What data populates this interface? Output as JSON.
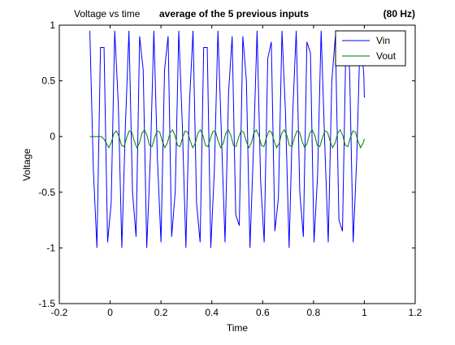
{
  "chart_data": {
    "type": "line",
    "title_left": "Voltage vs time",
    "title_middle": "average of the 5 previous inputs",
    "title_right": "(80 Hz)",
    "xlabel": "Time",
    "ylabel": "Voltage",
    "xlim": [
      -0.2,
      1.2
    ],
    "ylim": [
      -1.5,
      1
    ],
    "xticks": [
      -0.2,
      0,
      0.2,
      0.4,
      0.6,
      0.8,
      1,
      1.2
    ],
    "xtick_labels": [
      "-0.2",
      "0",
      "0.2",
      "0.4",
      "0.6",
      "0.8",
      "1",
      "1.2"
    ],
    "yticks": [
      -1.5,
      -1,
      -0.5,
      0,
      0.5,
      1
    ],
    "ytick_labels": [
      "-1.5",
      "-1",
      "-0.5",
      "0",
      "0.5",
      "1"
    ],
    "grid": false,
    "legend_position": "top-right",
    "series": [
      {
        "name": "Vin",
        "color": "#0000ff",
        "x": [
          -0.08,
          -0.066,
          -0.052,
          -0.038,
          -0.024,
          -0.01,
          0.004,
          0.018,
          0.032,
          0.046,
          0.06,
          0.074,
          0.088,
          0.102,
          0.116,
          0.13,
          0.144,
          0.158,
          0.172,
          0.186,
          0.2,
          0.214,
          0.228,
          0.242,
          0.256,
          0.27,
          0.284,
          0.298,
          0.312,
          0.326,
          0.34,
          0.354,
          0.368,
          0.382,
          0.396,
          0.41,
          0.424,
          0.438,
          0.452,
          0.466,
          0.48,
          0.494,
          0.508,
          0.522,
          0.536,
          0.55,
          0.564,
          0.578,
          0.592,
          0.606,
          0.62,
          0.634,
          0.648,
          0.662,
          0.676,
          0.69,
          0.704,
          0.718,
          0.732,
          0.746,
          0.76,
          0.774,
          0.788,
          0.802,
          0.816,
          0.83,
          0.844,
          0.858,
          0.872,
          0.886,
          0.9,
          0.914,
          0.928,
          0.942,
          0.956,
          0.97,
          0.984,
          0.998,
          1.0
        ],
        "y": [
          0.95,
          -0.3,
          -1.0,
          0.8,
          0.8,
          -0.95,
          -0.6,
          0.95,
          0.3,
          -1.0,
          0.1,
          0.95,
          -0.5,
          -0.9,
          0.9,
          0.6,
          -1.0,
          -0.2,
          0.95,
          -0.2,
          -0.95,
          0.6,
          0.9,
          -0.9,
          -0.5,
          0.95,
          0.1,
          -1.0,
          0.3,
          0.95,
          -0.6,
          -0.95,
          0.8,
          0.8,
          -1.0,
          -0.3,
          0.95,
          0.0,
          -0.95,
          0.4,
          0.9,
          -0.7,
          -0.8,
          0.9,
          0.5,
          -1.0,
          -0.1,
          0.95,
          -0.4,
          -0.95,
          0.7,
          0.85,
          -0.85,
          -0.55,
          0.95,
          0.2,
          -1.0,
          0.2,
          0.95,
          -0.5,
          -0.9,
          0.85,
          0.75,
          -0.95,
          -0.35,
          0.95,
          -0.05,
          -0.95,
          0.5,
          0.9,
          -0.75,
          -0.85,
          0.9,
          0.6,
          -0.95,
          -0.2,
          0.95,
          0.55,
          0.35
        ]
      },
      {
        "name": "Vout",
        "color": "#007f00",
        "x": [
          -0.08,
          -0.065,
          -0.05,
          -0.035,
          -0.025,
          -0.015,
          -0.005,
          0.005,
          0.015,
          0.025,
          0.035,
          0.045,
          0.055,
          0.065,
          0.075,
          0.085,
          0.095,
          0.105,
          0.115,
          0.125,
          0.135,
          0.145,
          0.155,
          0.165,
          0.175,
          0.185,
          0.195,
          0.205,
          0.215,
          0.225,
          0.235,
          0.245,
          0.255,
          0.265,
          0.275,
          0.285,
          0.295,
          0.305,
          0.315,
          0.325,
          0.335,
          0.345,
          0.355,
          0.365,
          0.375,
          0.385,
          0.395,
          0.405,
          0.415,
          0.425,
          0.435,
          0.445,
          0.455,
          0.465,
          0.475,
          0.485,
          0.495,
          0.505,
          0.515,
          0.525,
          0.535,
          0.545,
          0.555,
          0.565,
          0.575,
          0.585,
          0.595,
          0.605,
          0.615,
          0.625,
          0.635,
          0.645,
          0.655,
          0.665,
          0.675,
          0.685,
          0.695,
          0.705,
          0.715,
          0.725,
          0.735,
          0.745,
          0.755,
          0.765,
          0.775,
          0.785,
          0.795,
          0.805,
          0.815,
          0.825,
          0.835,
          0.845,
          0.855,
          0.865,
          0.875,
          0.885,
          0.895,
          0.905,
          0.915,
          0.925,
          0.935,
          0.945,
          0.955,
          0.965,
          0.975,
          0.985,
          0.995,
          1.0
        ],
        "y": [
          0.0,
          0.0,
          0.0,
          0.0,
          -0.02,
          -0.06,
          -0.1,
          -0.05,
          0.03,
          0.05,
          0.0,
          -0.08,
          -0.09,
          -0.01,
          0.05,
          0.04,
          -0.04,
          -0.1,
          -0.06,
          0.03,
          0.06,
          0.01,
          -0.08,
          -0.09,
          -0.01,
          0.05,
          0.04,
          -0.04,
          -0.1,
          -0.06,
          0.03,
          0.06,
          0.01,
          -0.08,
          -0.09,
          -0.01,
          0.05,
          0.04,
          -0.04,
          -0.1,
          -0.06,
          0.03,
          0.06,
          0.01,
          -0.08,
          -0.09,
          -0.01,
          0.05,
          0.04,
          -0.04,
          -0.1,
          -0.06,
          0.03,
          0.06,
          0.01,
          -0.08,
          -0.09,
          -0.01,
          0.05,
          0.04,
          -0.04,
          -0.1,
          -0.06,
          0.03,
          0.06,
          0.01,
          -0.08,
          -0.09,
          -0.01,
          0.05,
          0.04,
          -0.04,
          -0.1,
          -0.06,
          0.03,
          0.06,
          0.01,
          -0.08,
          -0.09,
          -0.01,
          0.05,
          0.04,
          -0.04,
          -0.1,
          -0.06,
          0.03,
          0.06,
          0.01,
          -0.08,
          -0.09,
          -0.01,
          0.05,
          0.04,
          -0.04,
          -0.1,
          -0.06,
          0.03,
          0.06,
          0.01,
          -0.08,
          -0.09,
          -0.01,
          0.05,
          0.04,
          -0.04,
          -0.1,
          -0.06,
          -0.02
        ]
      }
    ]
  }
}
